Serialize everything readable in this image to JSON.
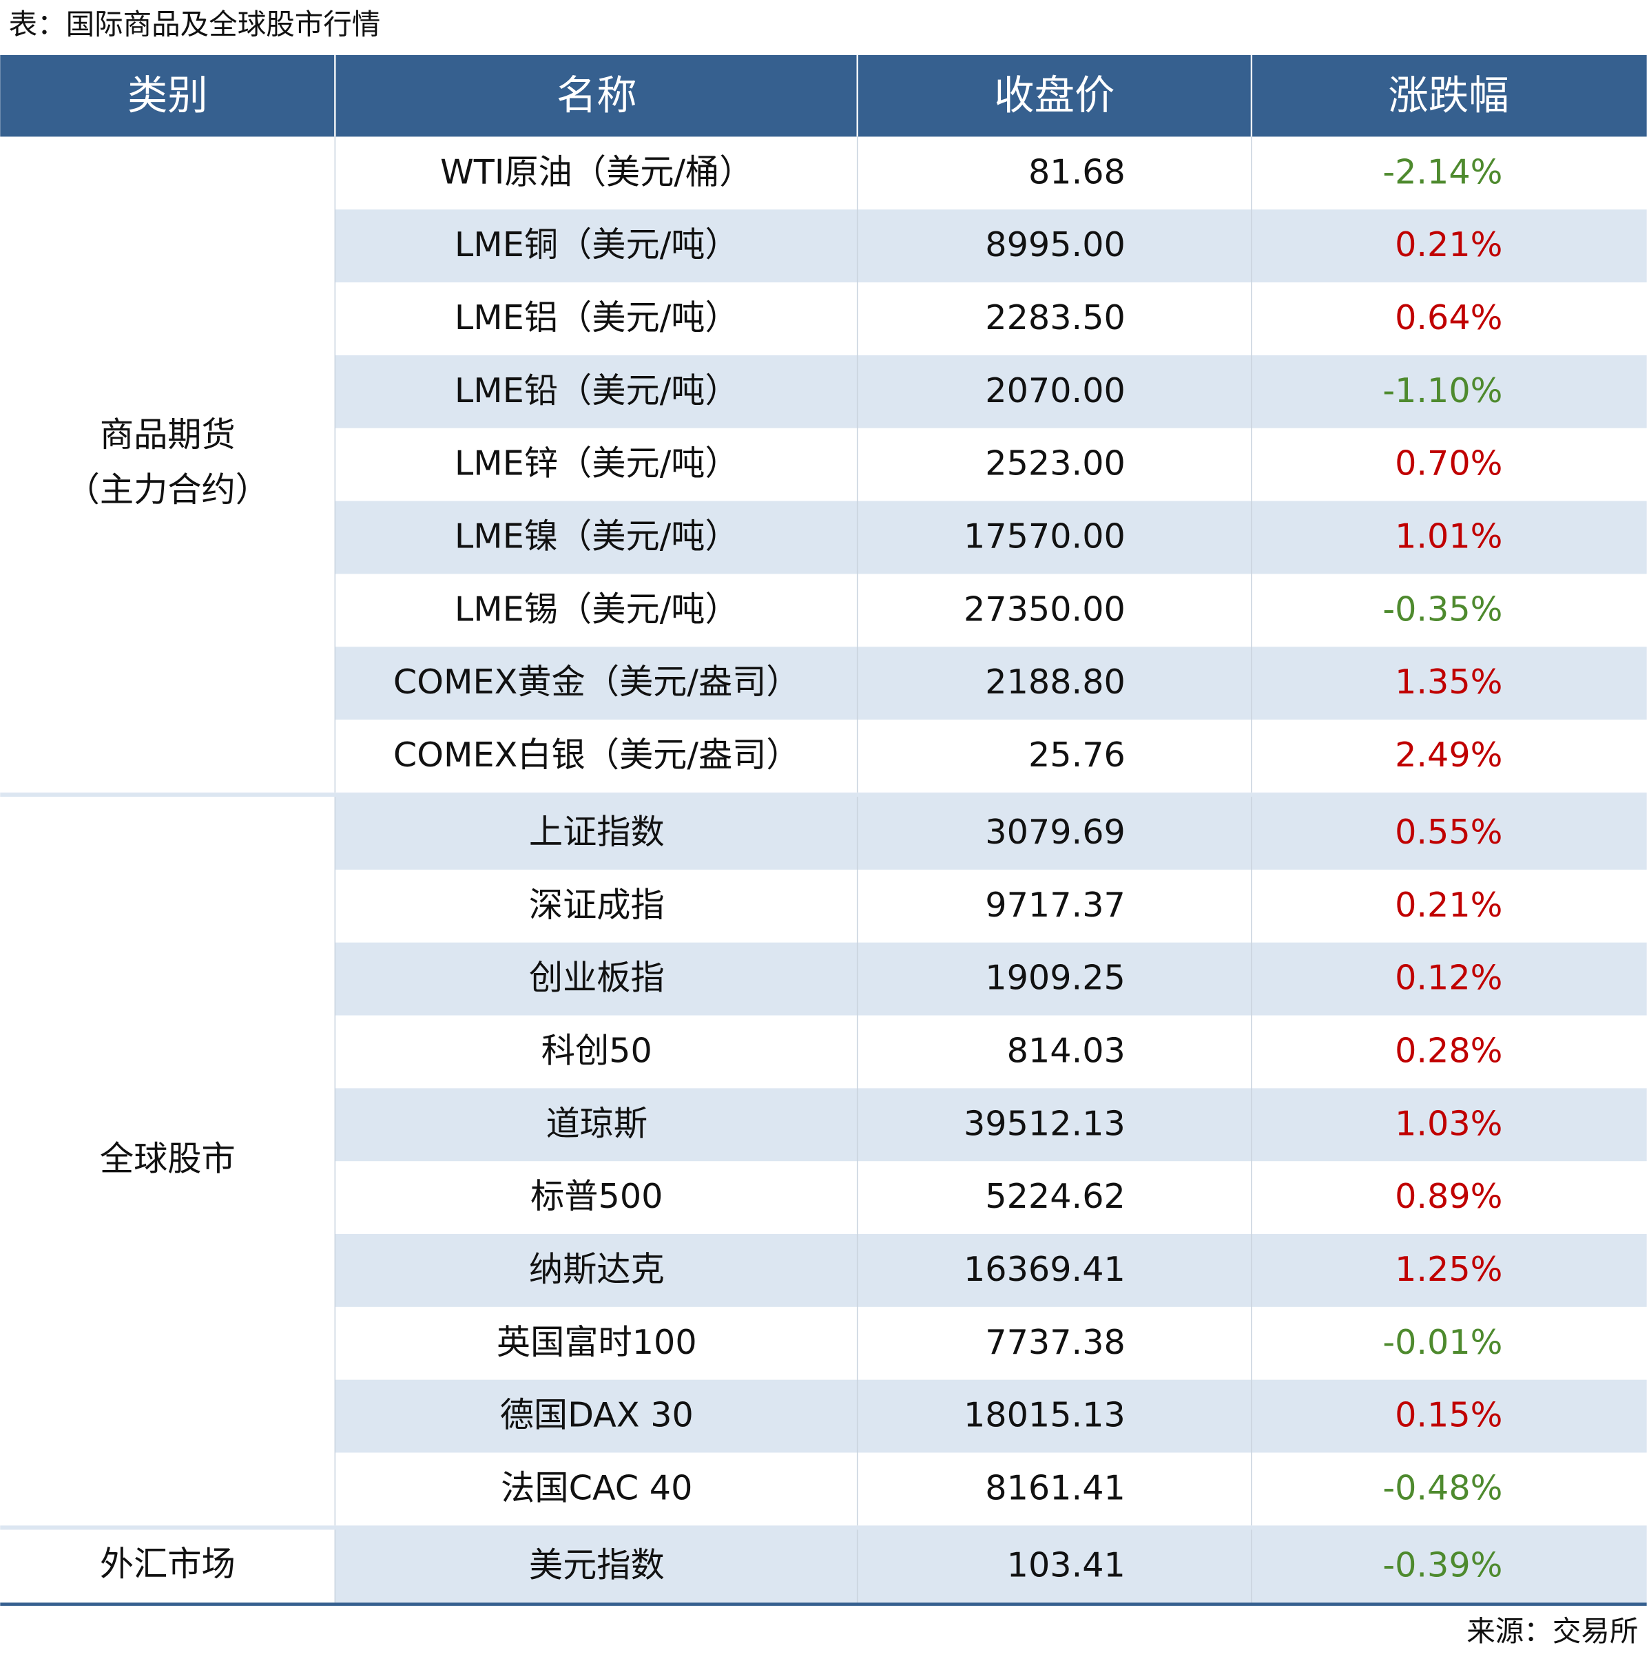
{
  "title": "表：国际商品及全球股市行情",
  "table": {
    "header": [
      "类别",
      "名称",
      "收盘价",
      "涨跌幅"
    ],
    "groups": [
      {
        "category": [
          "商品期货",
          "（主力合约）"
        ],
        "rows": [
          [
            "WTI原油（美元/桶）",
            "81.68",
            "-2.14%"
          ],
          [
            "LME铜（美元/吨）",
            "8995.00",
            "0.21%"
          ],
          [
            "LME铝（美元/吨）",
            "2283.50",
            "0.64%"
          ],
          [
            "LME铅（美元/吨）",
            "2070.00",
            "-1.10%"
          ],
          [
            "LME锌（美元/吨）",
            "2523.00",
            "0.70%"
          ],
          [
            "LME镍（美元/吨）",
            "17570.00",
            "1.01%"
          ],
          [
            "LME锡（美元/吨）",
            "27350.00",
            "-0.35%"
          ],
          [
            "COMEX黄金（美元/盎司）",
            "2188.80",
            "1.35%"
          ],
          [
            "COMEX白银（美元/盎司）",
            "25.76",
            "2.49%"
          ]
        ]
      },
      {
        "category": [
          "全球股市"
        ],
        "rows": [
          [
            "上证指数",
            "3079.69",
            "0.55%"
          ],
          [
            "深证成指",
            "9717.37",
            "0.21%"
          ],
          [
            "创业板指",
            "1909.25",
            "0.12%"
          ],
          [
            "科创50",
            "814.03",
            "0.28%"
          ],
          [
            "道琼斯",
            "39512.13",
            "1.03%"
          ],
          [
            "标普500",
            "5224.62",
            "0.89%"
          ],
          [
            "纳斯达克",
            "16369.41",
            "1.25%"
          ],
          [
            "英国富时100",
            "7737.38",
            "-0.01%"
          ],
          [
            "德国DAX 30",
            "18015.13",
            "0.15%"
          ],
          [
            "法国CAC 40",
            "8161.41",
            "-0.48%"
          ]
        ]
      },
      {
        "category": [
          "外汇市场"
        ],
        "rows": [
          [
            "美元指数",
            "103.41",
            "-0.39%"
          ]
        ]
      }
    ]
  },
  "source": "来源：交易所"
}
